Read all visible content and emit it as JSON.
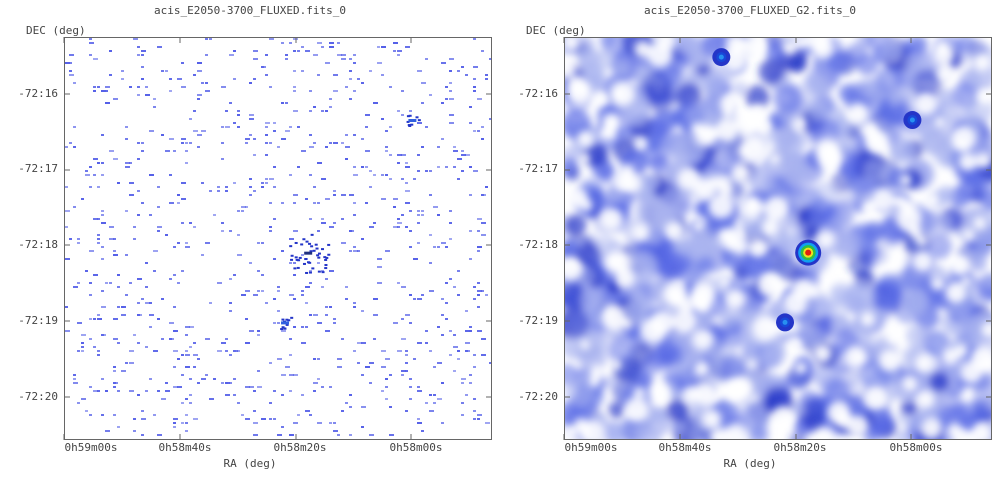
{
  "chart_data": [
    {
      "type": "heatmap",
      "title": "acis_E2050-3700_FLUXED.fits_0",
      "xlabel": "RA (deg)",
      "ylabel": "DEC (deg)",
      "x_ticks": [
        "0h59m00s",
        "0h58m40s",
        "0h58m20s",
        "0h58m00s"
      ],
      "y_ticks": [
        "-72:16",
        "-72:17",
        "-72:18",
        "-72:19",
        "-72:20"
      ],
      "rendering": "sparse individual counts",
      "sources": [
        {
          "ra": "0h58m18s",
          "dec": "-72:18.08",
          "level": "strongest"
        },
        {
          "ra": "0h58m00s",
          "dec": "-72:16.33",
          "level": "weak"
        },
        {
          "ra": "0h58m22s",
          "dec": "-72:19.0",
          "level": "weak"
        }
      ]
    },
    {
      "type": "heatmap",
      "title": "acis_E2050-3700_FLUXED_G2.fits_0",
      "xlabel": "RA (deg)",
      "ylabel": "DEC (deg)",
      "x_ticks": [
        "0h59m00s",
        "0h58m40s",
        "0h58m20s",
        "0h58m00s"
      ],
      "y_ticks": [
        "-72:16",
        "-72:17",
        "-72:18",
        "-72:19",
        "-72:20"
      ],
      "rendering": "gaussian smoothed",
      "sources": [
        {
          "ra": "0h58m18s",
          "dec": "-72:18.08",
          "level": "strongest"
        },
        {
          "ra": "0h58m00s",
          "dec": "-72:16.33",
          "level": "medium"
        },
        {
          "ra": "0h58m22s",
          "dec": "-72:19.0",
          "level": "medium"
        },
        {
          "ra": "0h58m33s",
          "dec": "-72:15.5",
          "level": "medium"
        }
      ]
    }
  ],
  "colors": {
    "background": "#ffffff",
    "count_blue": "#5560e8",
    "smooth_light": "#aab4f0",
    "smooth_mid": "#5a6ce6",
    "smooth_dark": "#2435c8",
    "peak_red": "#e02010",
    "peak_yellow": "#f0e020",
    "peak_green": "#30c040"
  }
}
